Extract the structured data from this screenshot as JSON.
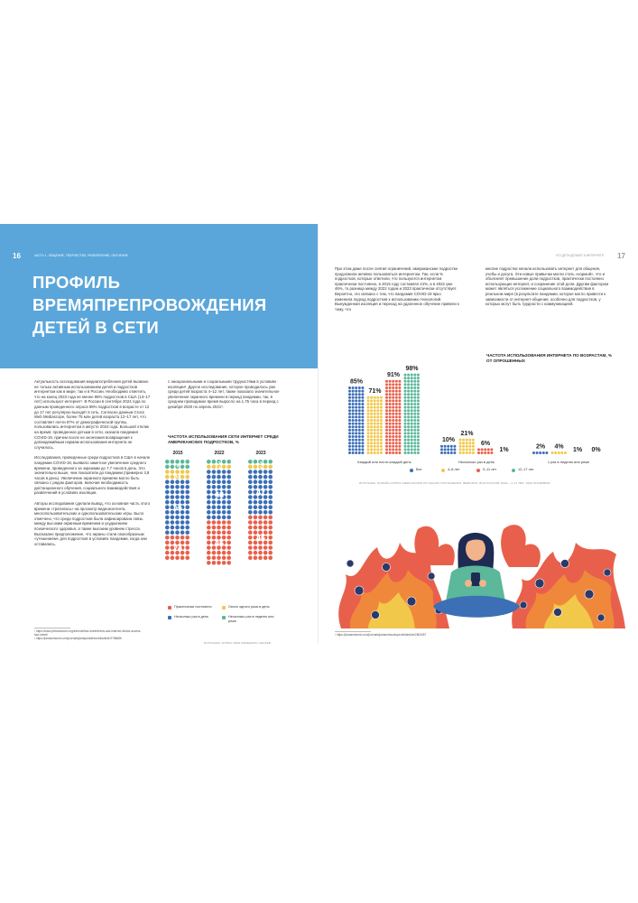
{
  "left_page": {
    "page_number": "16",
    "section_label": "ЧАСТЬ 1. ОБЩЕНИЕ, ТВОРЧЕСТВО, РАЗВЛЕЧЕНИЕ, ОБУЧЕНИЕ",
    "title_lines": [
      "ПРОФИЛЬ",
      "ВРЕМЯПРЕПРОВОЖДЕНИЯ",
      "ДЕТЕЙ В СЕТИ"
    ],
    "col1": [
      "Актуальность исследования медиапотребления детей вызвано не только активным использованием детей и подростков интернетом как в мире, так и в России. Необходимо отметить, что на конец 2023 года не менее 96% подростков в США (13–17 лет) используют интернет¹. В России в сентябре 2024 года по данным проведенного опроса 98% подростков в возрасте от 12 до 17 лет регулярно выходят в сеть. Согласно данным Cross Web Mediascope, более 75 млн детей возраста 12–17 лет, что составляет почти 97% от демографической группы, пользовались интернетом в августе 2024 года. Большой отклик на время, проведенное детьми в сети, оказала пандемия COVID-19, причем после ее окончания возвращения к допандемийным нормам использования интернета не случилось.",
      "Исследования, проведенные среди подростков в США в начале пандемии COVID-19, выявило заметное увеличение среднего времени, проведенного за экранами до 7,7 часов в день. Это значительно выше, чем показатели до пандемии (примерно 3,8 часов в день). Увеличение экранного времени могло быть связано с рядом факторов, включая необходимость дистанционного обучения, социального взаимодействия и развлечений в условиях изоляции.",
      "Авторы исследования сделали вывод, что основная часть этого времени «тратилась» на просмотр видеоконтента, многопользовательских и однопользовательских игры. Было отмечено, что среди подростков была зафиксирована связь между высоким экранным временем и ухудшением психического здоровья, а также высоким уровнем стресса. Высказано предположение, что экраны стали своеобразным «утешением» для подростков в условиях пандемии, когда они оставались."
    ],
    "col2": "с эмоциональными и социальными трудностями в условиях изоляции². Другое исследование, которое проводилось уже среди детей возраста 4–12 лет, также показало значительное увеличение экранного времени в период пандемии, так, в среднем проводимое время выросло на 1,75 часа в период с декабря 2020 по апрель 2021³.",
    "footnotes": [
      "¹ https://www.pewresearch.org/internet/fact-sheet/teens-and-internet-device-access-fact-sheet/",
      "² https://jamanetwork.com/journals/jamapediatrics/fullarticle/2786886"
    ],
    "chart": {
      "title": "ЧАСТОТА ИСПОЛЬЗОВАНИЯ СЕТИ ИНТЕРНЕТ СРЕДИ АМЕРИКАНСКИХ ПОДРОСТКОВ, %",
      "source": "ИСТОЧНИК: ОПРОС PEW RESEARCH CENTER",
      "legend": [
        {
          "label": "Практически постоянно",
          "color": "#e8604c"
        },
        {
          "label": "Около одного раза в день",
          "color": "#f2c84b"
        },
        {
          "label": "Несколько раз в день",
          "color": "#3b6fb6"
        },
        {
          "label": "Несколько раз в неделю или реже",
          "color": "#5bb89a"
        }
      ]
    }
  },
  "right_page": {
    "page_number": "17",
    "header_label": "ЧТО ДЕТИ ДЕЛАЮТ В ИНТЕРНЕТЕ",
    "col1": "При этом даже после снятия ограничений, американские подростки продолжили активно пользоваться интернетом. Так, если % подростков, которые ответили, что пользуются интернетом практически постоянно, в 2015 году составлял 24%, а в 2022 уже 46%, то разница между 2022 годом и 2023 практически отсутствует. Вероятно, это связано с тем, что пандемия COVID-19 ярко изменила подход подростков к использованию технологий. Вынужденная изоляция и переход на удаленное обучение привели к тому, что",
    "col2": "многие подростки начали использовать интернет для общения, учебы и досуга. Эти новые привычки могли стать «нормой», что и объясняет превышение доли подростков, практически постоянно использующих интернет, и сохранение этой доли. Другим фактором может являться усложнение социального взаимодействия в реальном мире (в результате пандемии, которое могло привести к зависимости от интернет-общения, особенно для подростков, у которых могут быть трудности с коммуникацией.",
    "chart": {
      "title": "ЧАСТОТА ИСПОЛЬЗОВАНИЯ ИНТЕРНЕТА ПО ВОЗРАСТАМ, % ОТ ОПРОШЕННЫХ",
      "source": "ИСТОЧНИК: ОНЛАЙН-ОПРОС MEDIASCOPE ПО ЗАКАЗУ РОСТЕЛЕКОМ, ВЫБОРКА: ВСЯ РОССИЯ 100К+, 4–17 ЛЕТ, 2000 ИНТЕРВЬЮ",
      "legend": [
        "Все",
        "4–8 лет",
        "9–11 лет",
        "12–17 лет"
      ]
    },
    "footnote": "³ https://jamanetwork.com/journals/jamanetworkopen/fullarticle/2804457"
  },
  "chart_data": [
    {
      "type": "bar",
      "title": "ЧАСТОТА ИСПОЛЬЗОВАНИЯ СЕТИ ИНТЕРНЕТ СРЕДИ АМЕРИКАНСКИХ ПОДРОСТКОВ, %",
      "categories": [
        "2015",
        "2022",
        "2023"
      ],
      "series": [
        {
          "name": "Практически постоянно",
          "values": [
            24,
            46,
            46
          ],
          "color": "#e8604c"
        },
        {
          "name": "Несколько раз в день",
          "values": [
            56,
            48,
            47
          ],
          "color": "#3b6fb6"
        },
        {
          "name": "Около одного раза в день",
          "values": [
            12,
            3,
            3
          ],
          "color": "#f2c84b"
        },
        {
          "name": "Несколько раз в неделю или реже",
          "values": [
            8,
            3,
            3
          ],
          "color": "#5bb89a"
        }
      ],
      "stacked": true,
      "value_labels": [
        [
          "24",
          "56",
          "12",
          "8"
        ],
        [
          "46",
          "48",
          "3",
          "3"
        ],
        [
          "46",
          "47",
          "3",
          "3"
        ]
      ]
    },
    {
      "type": "bar",
      "title": "ЧАСТОТА ИСПОЛЬЗОВАНИЯ ИНТЕРНЕТА ПО ВОЗРАСТАМ, % ОТ ОПРОШЕННЫХ",
      "categories": [
        "Каждый или почти каждый день",
        "Несколько раз в день",
        "1 раз в неделю или реже"
      ],
      "series": [
        {
          "name": "Все",
          "values": [
            85,
            10,
            2
          ],
          "color": "#3b6fb6"
        },
        {
          "name": "4–8 лет",
          "values": [
            71,
            21,
            4
          ],
          "color": "#f2c84b"
        },
        {
          "name": "9–11 лет",
          "values": [
            91,
            6,
            1
          ],
          "color": "#e8604c"
        },
        {
          "name": "12–17 лет",
          "values": [
            98,
            1,
            0
          ],
          "color": "#5bb89a"
        }
      ],
      "value_labels": [
        [
          "85%",
          "71%",
          "91%",
          "98%"
        ],
        [
          "10%",
          "21%",
          "6%",
          "1%"
        ],
        [
          "2%",
          "4%",
          "1%",
          "0%"
        ]
      ],
      "ylim": [
        0,
        100
      ]
    }
  ]
}
